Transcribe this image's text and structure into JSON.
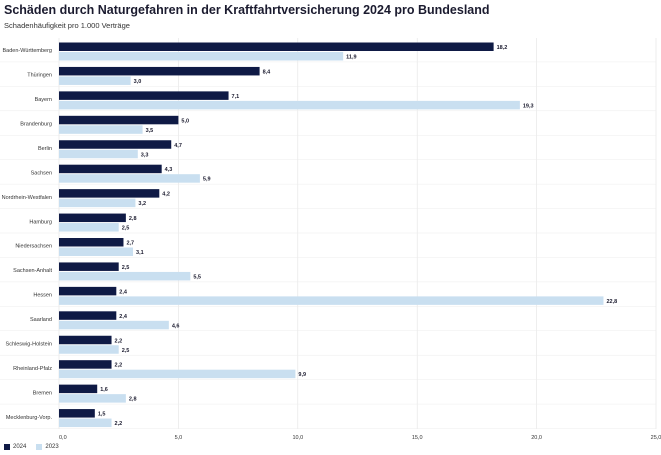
{
  "chart_data": {
    "type": "bar",
    "orientation": "horizontal",
    "title": "Schäden durch Naturgefahren in der Kraftfahrtversicherung 2024 pro Bundesland",
    "subtitle": "Schadenhäufigkeit pro 1.000 Verträge",
    "categories": [
      "Baden-Württemberg",
      "Thüringen",
      "Bayern",
      "Brandenburg",
      "Berlin",
      "Sachsen",
      "Nordrhein-Westfalen",
      "Hamburg",
      "Niedersachsen",
      "Sachsen-Anhalt",
      "Hessen",
      "Saarland",
      "Schleswig-Holstein",
      "Rheinland-Pfalz",
      "Bremen",
      "Mecklenburg-Vorp."
    ],
    "series": [
      {
        "name": "2024",
        "color": "#0f1a45",
        "values": [
          18.2,
          8.4,
          7.1,
          5.0,
          4.7,
          4.3,
          4.2,
          2.8,
          2.7,
          2.5,
          2.4,
          2.4,
          2.2,
          2.2,
          1.6,
          1.5
        ]
      },
      {
        "name": "2023",
        "color": "#c9dff0",
        "values": [
          11.9,
          3.0,
          19.3,
          3.5,
          3.3,
          5.9,
          3.2,
          2.5,
          3.1,
          5.5,
          22.8,
          4.6,
          2.5,
          9.9,
          2.8,
          2.2
        ]
      }
    ],
    "xlim": [
      0,
      25
    ],
    "xticks": [
      "0,0",
      "5,0",
      "10,0",
      "15,0",
      "20,0",
      "25,0"
    ],
    "grid": true,
    "legend": "bottom-left",
    "data_labels": true
  }
}
